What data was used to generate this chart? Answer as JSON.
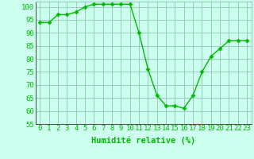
{
  "x": [
    0,
    1,
    2,
    3,
    4,
    5,
    6,
    7,
    8,
    9,
    10,
    11,
    12,
    13,
    14,
    15,
    16,
    17,
    18,
    19,
    20,
    21,
    22,
    23
  ],
  "y": [
    94,
    94,
    97,
    97,
    98,
    100,
    101,
    101,
    101,
    101,
    101,
    90,
    76,
    66,
    62,
    62,
    61,
    66,
    75,
    81,
    84,
    87,
    87,
    87
  ],
  "line_color": "#00bb00",
  "marker": "D",
  "marker_size": 2.5,
  "bg_color": "#ccffee",
  "grid_color": "#99ccbb",
  "xlabel": "Humidité relative (%)",
  "xlabel_color": "#00bb00",
  "xlabel_fontsize": 7.5,
  "ylim": [
    55,
    102
  ],
  "yticks": [
    55,
    60,
    65,
    70,
    75,
    80,
    85,
    90,
    95,
    100
  ],
  "xticks": [
    0,
    1,
    2,
    3,
    4,
    5,
    6,
    7,
    8,
    9,
    10,
    11,
    12,
    13,
    14,
    15,
    16,
    17,
    18,
    19,
    20,
    21,
    22,
    23
  ],
  "tick_fontsize": 6.5,
  "line_width": 1.0
}
